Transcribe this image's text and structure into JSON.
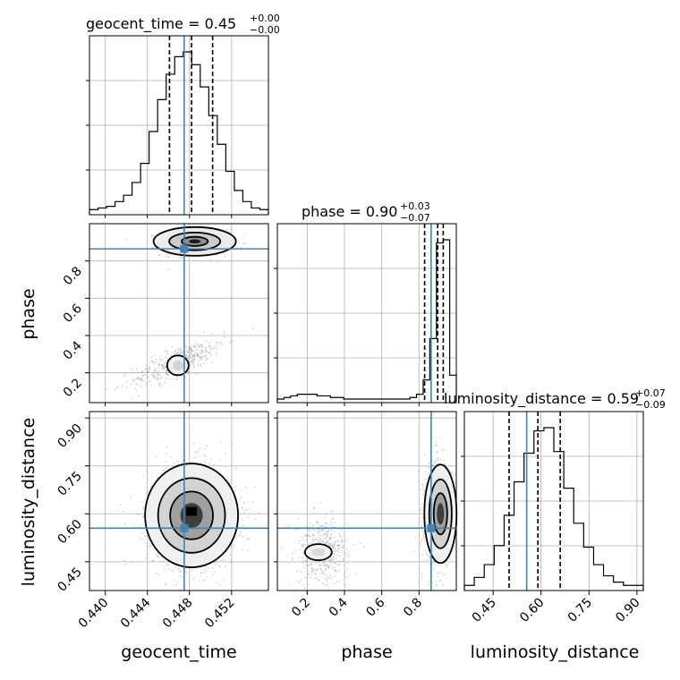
{
  "chart_data": {
    "type": "corner",
    "parameters": [
      {
        "name": "geocent_time",
        "range": [
          0.4385,
          0.4555
        ],
        "ticks": [
          "0.440",
          "0.444",
          "0.448",
          "0.452"
        ],
        "title": {
          "label": "geocent_time = 0.45",
          "plus": "+0.00",
          "minus": "−0.00"
        },
        "truth": 0.4475,
        "quantiles": [
          0.4461,
          0.4482,
          0.4502
        ],
        "histogram": [
          1,
          2,
          3,
          6,
          10,
          18,
          30,
          50,
          70,
          86,
          97,
          100,
          92,
          78,
          60,
          42,
          25,
          13,
          6,
          2,
          1
        ]
      },
      {
        "name": "phase",
        "range": [
          0.04,
          1.0
        ],
        "ticks": [
          "0.2",
          "0.4",
          "0.6",
          "0.8"
        ],
        "title": {
          "label": "phase = 0.90",
          "plus": "+0.03",
          "minus": "−0.07"
        },
        "truth": 0.865,
        "quantiles": [
          0.83,
          0.9,
          0.93
        ],
        "histogram": [
          0,
          1,
          2,
          3,
          3,
          3,
          2,
          2,
          1,
          1,
          0,
          0,
          0,
          0,
          0,
          0,
          0,
          0,
          0,
          0,
          1,
          3,
          12,
          38,
          98,
          100,
          15
        ]
      },
      {
        "name": "luminosity_distance",
        "range": [
          0.36,
          0.92
        ],
        "ticks": [
          "0.45",
          "0.60",
          "0.75",
          "0.90"
        ],
        "title": {
          "label": "luminosity_distance = 0.59",
          "plus": "+0.07",
          "minus": "−0.09"
        },
        "truth": 0.555,
        "quantiles": [
          0.5,
          0.59,
          0.66
        ],
        "histogram": [
          1,
          6,
          14,
          26,
          45,
          66,
          84,
          98,
          100,
          85,
          62,
          40,
          25,
          14,
          7,
          3,
          1,
          1
        ]
      }
    ],
    "truth_color": "#4682b4",
    "grid": true,
    "legend": "none"
  }
}
